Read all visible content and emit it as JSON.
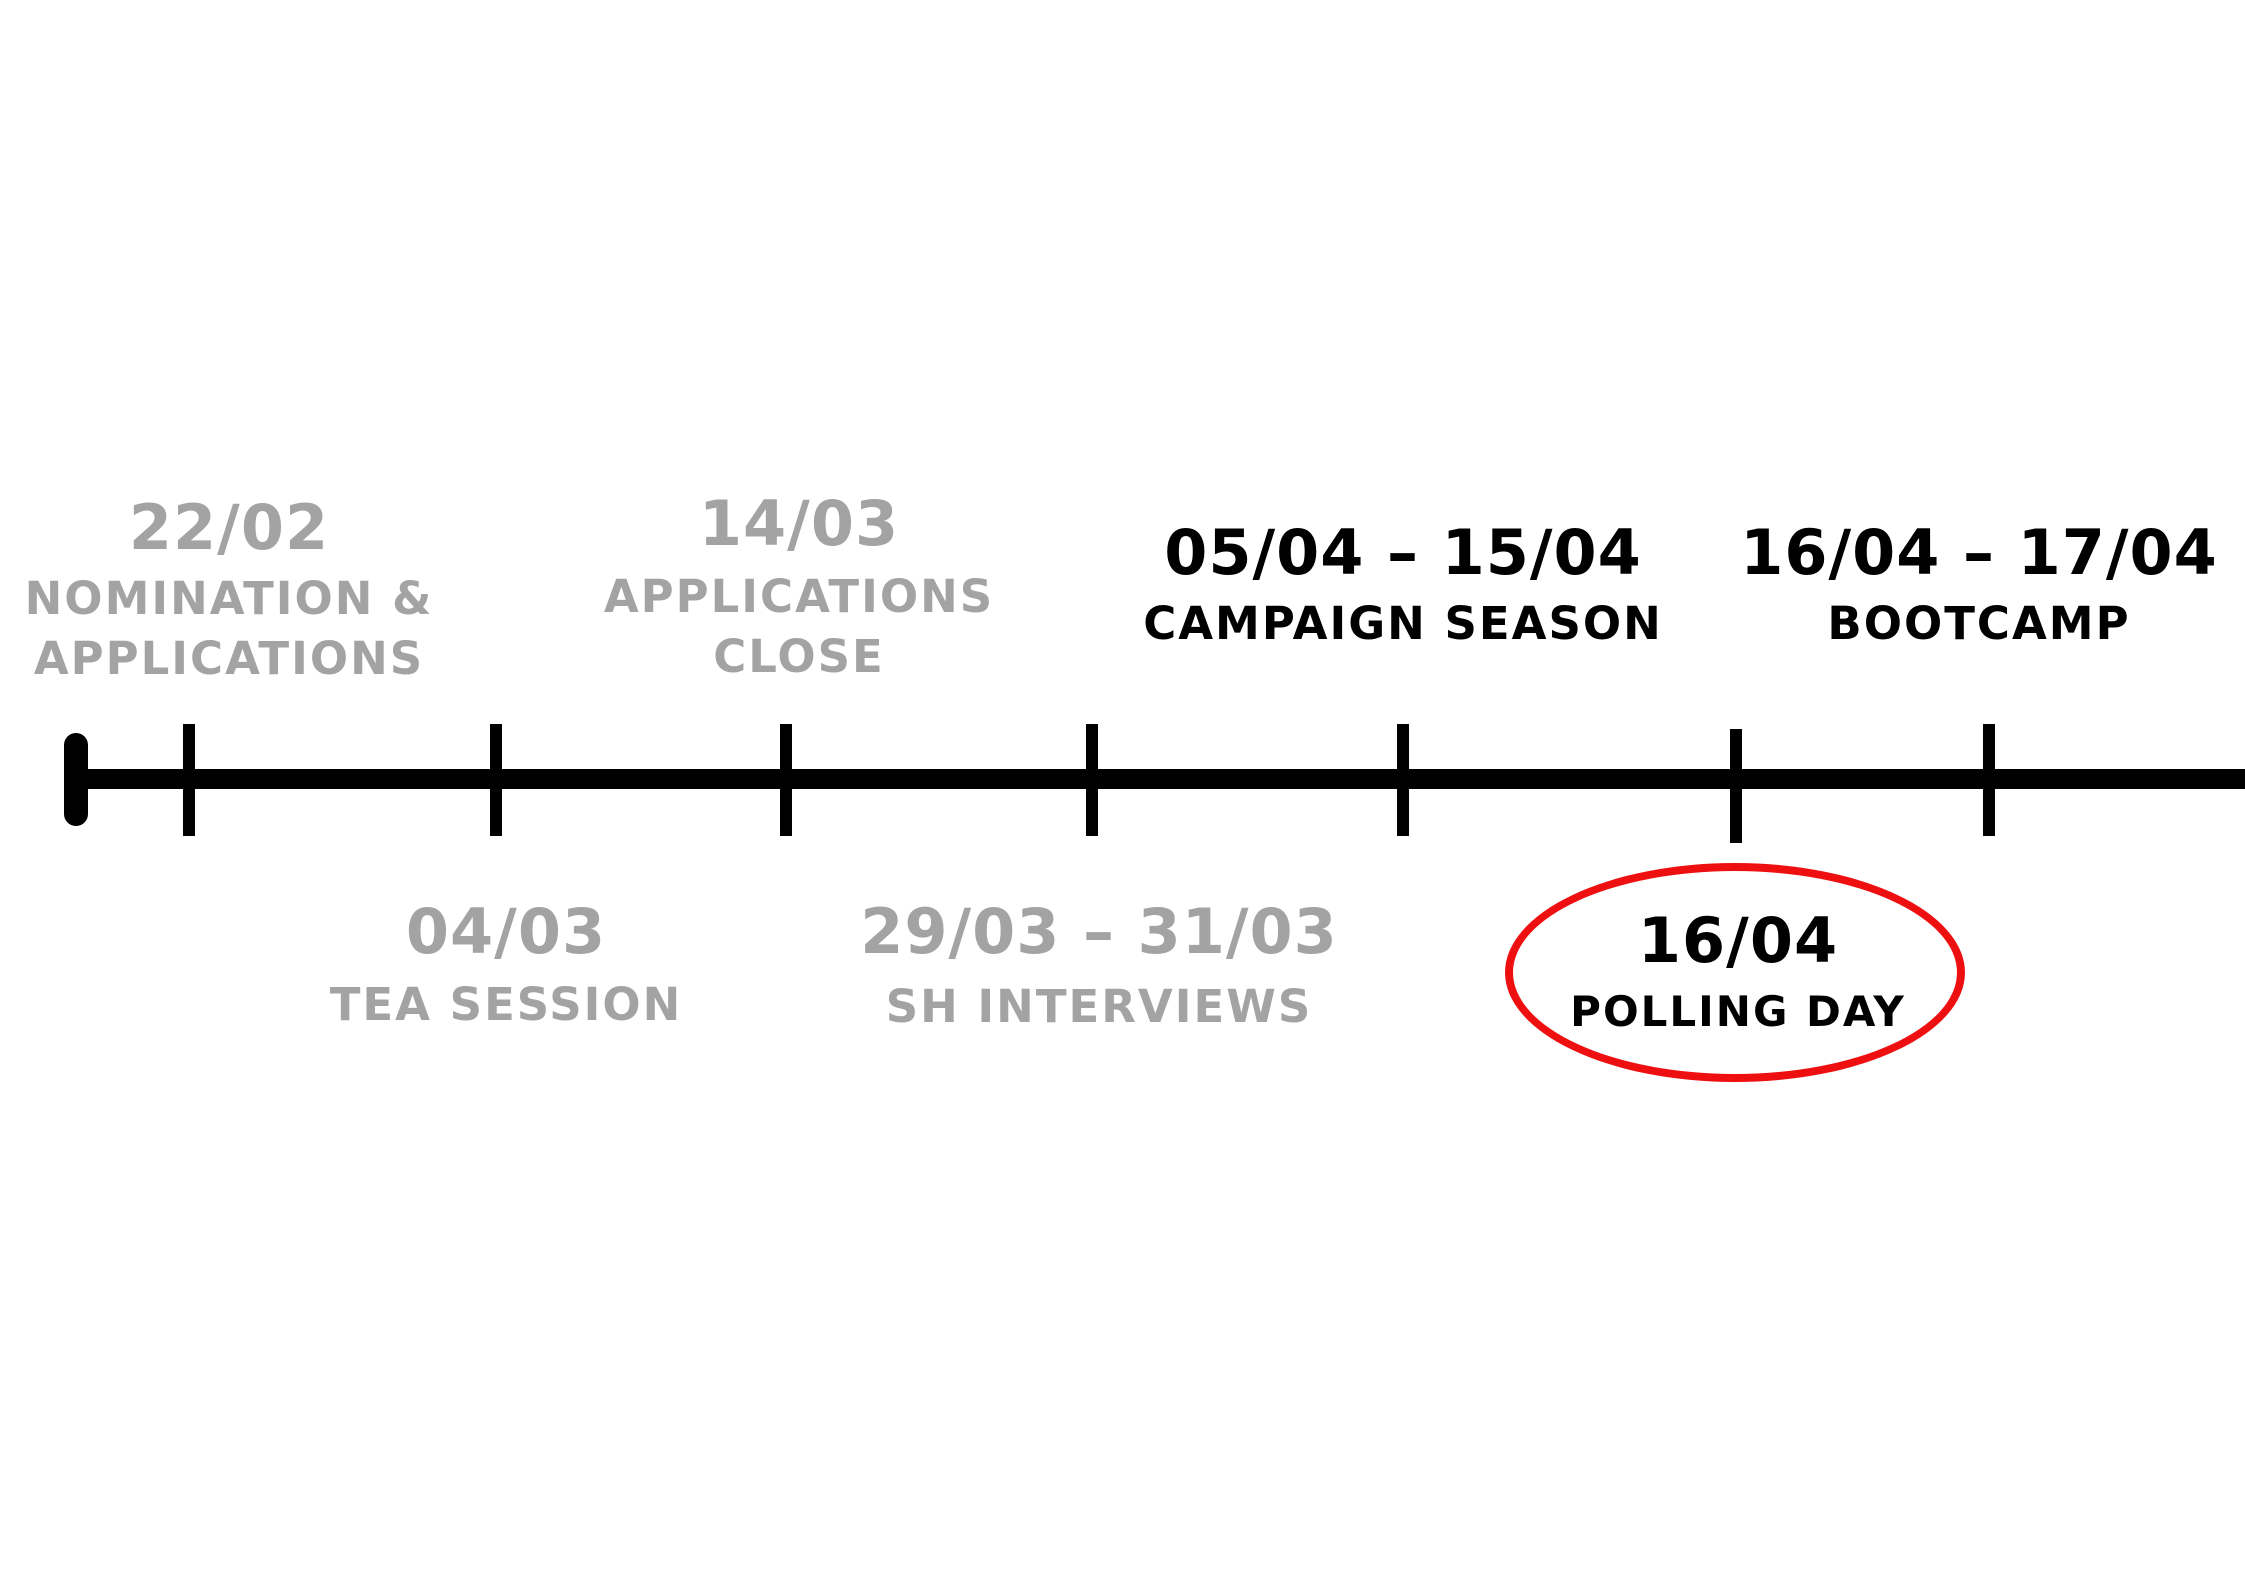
{
  "colors": {
    "past": "#a3a3a3",
    "upcoming": "#000000",
    "axis": "#000000",
    "highlight": "#ee1010"
  },
  "events": [
    {
      "id": "nomination",
      "date": "22/02",
      "caption": [
        "NOMINATION &",
        "APPLICATIONS"
      ],
      "status": "past"
    },
    {
      "id": "tea-session",
      "date": "04/03",
      "caption": [
        "TEA SESSION"
      ],
      "status": "past"
    },
    {
      "id": "applications-close",
      "date": "14/03",
      "caption": [
        "APPLICATIONS",
        "CLOSE"
      ],
      "status": "past"
    },
    {
      "id": "sh-interviews",
      "date": "29/03 – 31/03",
      "caption": [
        "SH INTERVIEWS"
      ],
      "status": "past"
    },
    {
      "id": "campaign-season",
      "date": "05/04 – 15/04",
      "caption": [
        "CAMPAIGN SEASON"
      ],
      "status": "upcoming"
    },
    {
      "id": "polling-day",
      "date": "16/04",
      "caption": [
        "POLLING DAY"
      ],
      "status": "upcoming",
      "highlighted": true
    },
    {
      "id": "bootcamp",
      "date": "16/04 – 17/04",
      "caption": [
        "BOOTCAMP"
      ],
      "status": "upcoming"
    }
  ]
}
